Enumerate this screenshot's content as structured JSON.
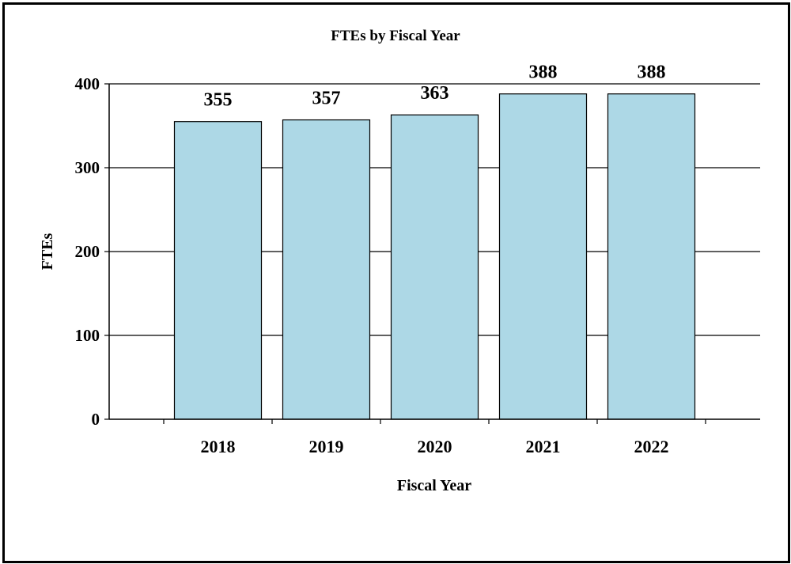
{
  "chart_data": {
    "type": "bar",
    "title": "FTEs by Fiscal Year",
    "xlabel": "Fiscal Year",
    "ylabel": "FTEs",
    "categories": [
      "2018",
      "2019",
      "2020",
      "2021",
      "2022"
    ],
    "values": [
      355,
      357,
      363,
      388,
      388
    ],
    "data_labels": [
      "355",
      "357",
      "363",
      "388",
      "388"
    ],
    "yticks": [
      0,
      100,
      200,
      300,
      400
    ],
    "ylim": [
      0,
      400
    ],
    "grid": true,
    "legend": "none",
    "colors": {
      "bar_fill": "#add8e6",
      "bar_stroke": "#000000",
      "gridline": "#000000"
    }
  }
}
